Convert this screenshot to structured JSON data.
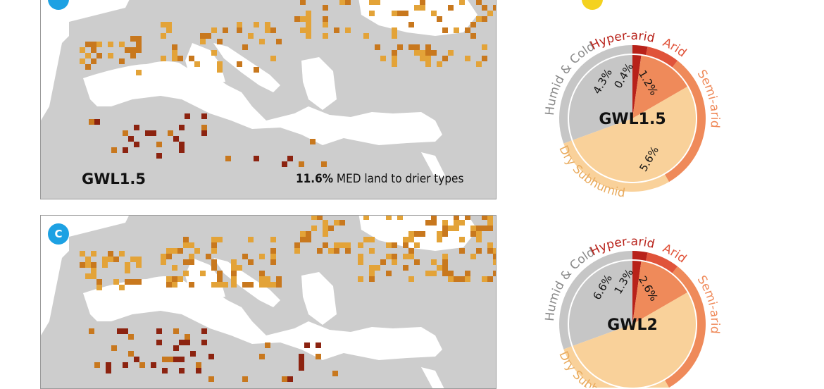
{
  "panels": [
    {
      "badge": "",
      "label": "GWL1.5",
      "stat_value": "11.6%",
      "stat_text": "MED land to drier types"
    },
    {
      "badge": "C",
      "label": "",
      "stat_value": "",
      "stat_text": ""
    }
  ],
  "legend": {
    "humid_cold": "Humid & Cold",
    "hyper_arid": "Hyper-arid",
    "arid": "Arid",
    "semi_arid": "Semi-arid",
    "dry_subhumid": "Dry Subhumid"
  },
  "chart_data": [
    {
      "type": "pie",
      "title": "GWL1.5",
      "inner_ring": [
        {
          "label": "Humid & Cold",
          "value": 4.3,
          "text": "4.3%",
          "color": "#c6c6c6"
        },
        {
          "label": "Hyper-arid",
          "value": 0.4,
          "text": "0.4%",
          "color": "#d43f2a"
        },
        {
          "label": "Arid",
          "value": 1.2,
          "text": "1.2%",
          "color": "#ef8a62"
        },
        {
          "label": "Dry Subhumid",
          "value": 5.6,
          "text": "5.6%",
          "color": "#f9d19a"
        }
      ],
      "outer_ring": [
        "Humid & Cold",
        "Hyper-arid",
        "Arid",
        "Semi-arid",
        "Dry Subhumid"
      ]
    },
    {
      "type": "pie",
      "title": "GWL2",
      "inner_ring": [
        {
          "label": "Humid & Cold",
          "value": 6.6,
          "text": "6.6%",
          "color": "#c6c6c6"
        },
        {
          "label": "Hyper-arid",
          "value": 1.3,
          "text": "1.3%",
          "color": "#d43f2a"
        },
        {
          "label": "Arid",
          "value": 2.6,
          "text": "2.6%",
          "color": "#ef8a62"
        }
      ],
      "outer_ring": [
        "Humid & Cold",
        "Hyper-arid",
        "Arid",
        "Semi-arid",
        "Dry Subhumid"
      ]
    }
  ],
  "colors": {
    "land": "#cdcdcd",
    "sea": "#ffffff",
    "light_orange": "#e3a338",
    "dark_orange": "#c8781e",
    "dark_red": "#8c2310",
    "humid_cold": "#c6c6c6",
    "hyper_arid": "#b8221a",
    "arid": "#e0533a",
    "semi_arid": "#ef8a5a",
    "dry_subhumid": "#f9d19a",
    "badge_blue": "#1da1e3",
    "badge_yellow": "#f4d21f"
  }
}
